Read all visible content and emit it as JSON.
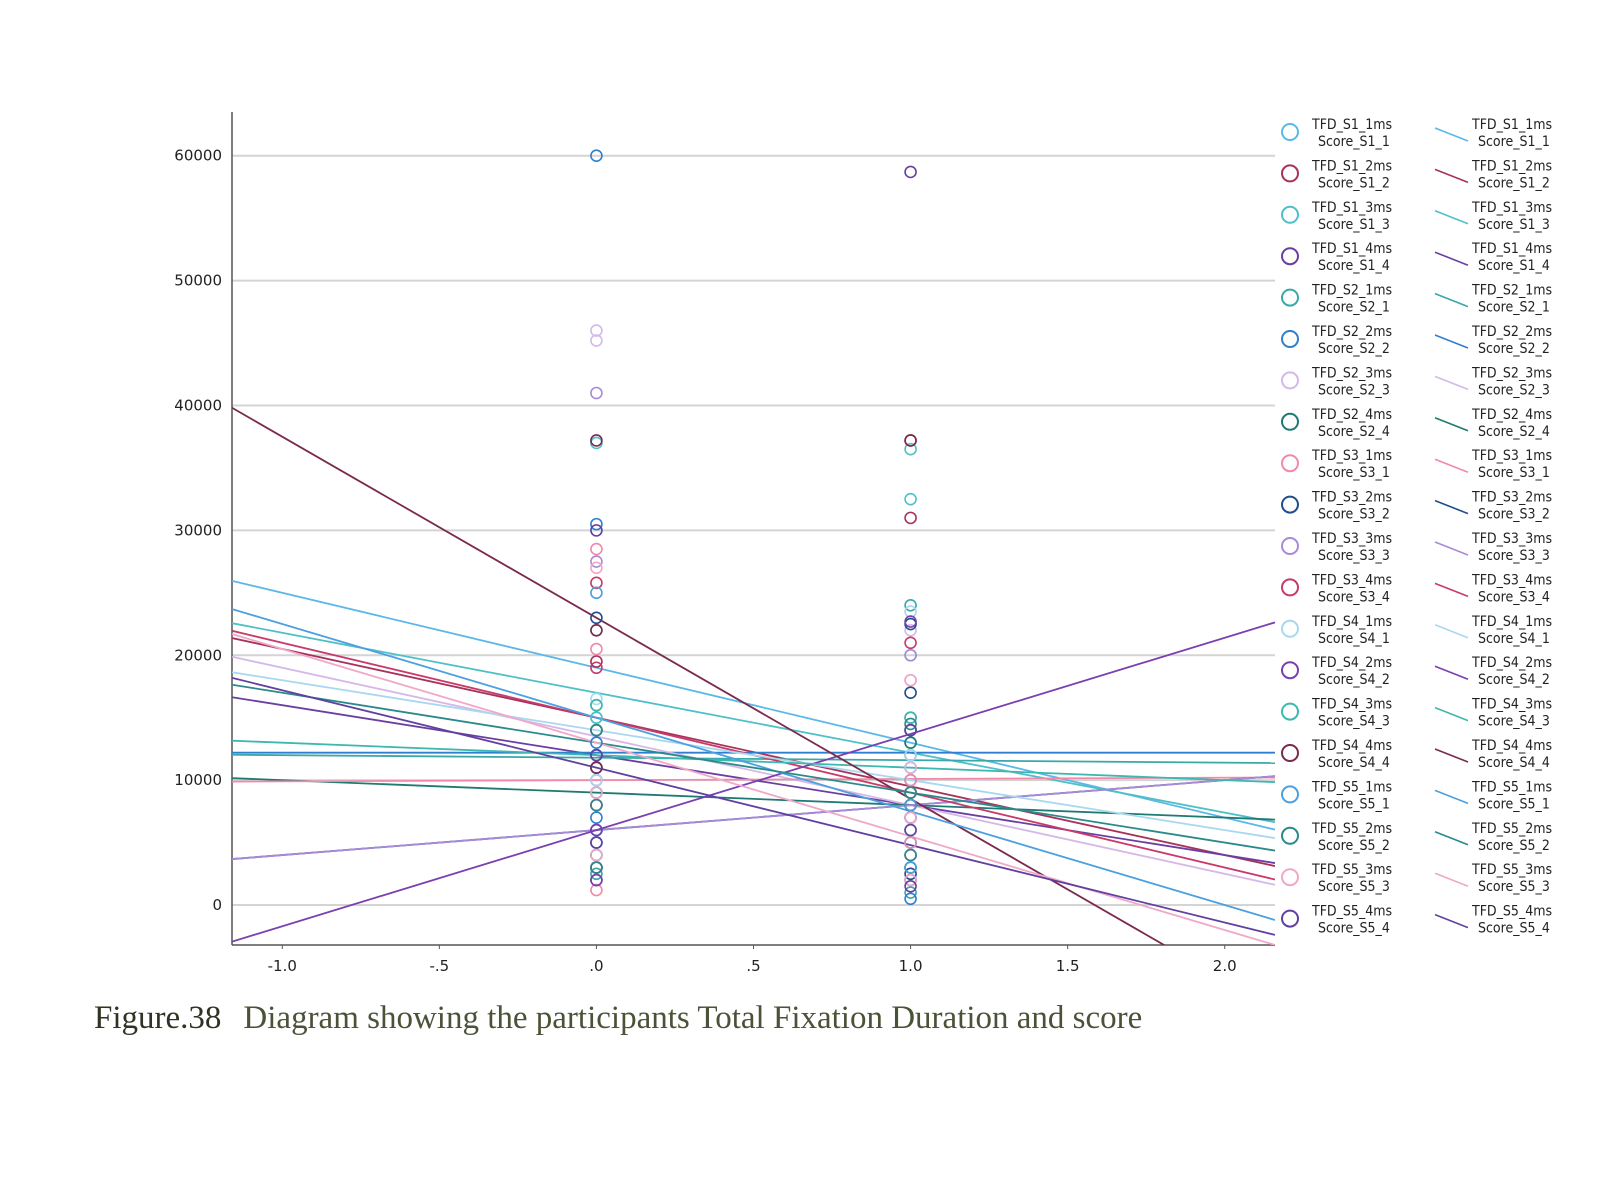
{
  "caption": {
    "figure_number": "Figure.38",
    "text": "Diagram showing the participants Total Fixation Duration and score"
  },
  "chart_data": {
    "type": "scatter",
    "title": "",
    "xlabel": "",
    "ylabel": "",
    "xlim": [
      -1.16,
      2.16
    ],
    "ylim": [
      -3200,
      63500
    ],
    "x_ticks": [
      -1.0,
      -0.5,
      0.0,
      0.5,
      1.0,
      1.5,
      2.0
    ],
    "x_tick_labels": [
      "-1.0",
      "-.5",
      ".0",
      ".5",
      "1.0",
      "1.5",
      "2.0"
    ],
    "y_ticks": [
      0,
      10000,
      20000,
      30000,
      40000,
      50000,
      60000
    ],
    "y_tick_labels": [
      "0",
      "10000",
      "20000",
      "30000",
      "40000",
      "50000",
      "60000"
    ],
    "grid": "horizontal",
    "legend_position": "right",
    "series": [
      {
        "tfd": "TFD_S1_1ms",
        "score": "Score_S1_1",
        "color": "#5bb8e8",
        "fit": [
          19000,
          -6000
        ],
        "x0": [
          22000,
          15000,
          11000,
          6000,
          3000
        ],
        "x1": [
          20000,
          12000,
          8000,
          5000,
          2000
        ]
      },
      {
        "tfd": "TFD_S1_2ms",
        "score": "Score_S1_2",
        "color": "#a8325a",
        "fit": [
          15000,
          -5500
        ],
        "x0": [
          19500,
          14000,
          10000,
          5000
        ],
        "x1": [
          31000,
          11000,
          7000,
          3000
        ]
      },
      {
        "tfd": "TFD_S1_3ms",
        "score": "Score_S1_3",
        "color": "#4fc0c8",
        "fit": [
          17000,
          -4800
        ],
        "x0": [
          37000,
          15000,
          9000,
          4000
        ],
        "x1": [
          36500,
          32500,
          13000,
          7000
        ]
      },
      {
        "tfd": "TFD_S1_4ms",
        "score": "Score_S1_4",
        "color": "#6a3fa0",
        "fit": [
          12000,
          -4000
        ],
        "x0": [
          12000,
          8000,
          3000
        ],
        "x1": [
          58700,
          9000,
          4000
        ]
      },
      {
        "tfd": "TFD_S2_1ms",
        "score": "Score_S2_1",
        "color": "#3aa8a8",
        "fit": [
          11800,
          -200
        ],
        "x0": [
          16000,
          11000,
          6000,
          2500
        ],
        "x1": [
          24000,
          12000,
          6000,
          1000
        ]
      },
      {
        "tfd": "TFD_S2_2ms",
        "score": "Score_S2_2",
        "color": "#2e7fd0",
        "fit": [
          12200,
          0
        ],
        "x0": [
          60000,
          30500,
          13000,
          7000
        ],
        "x1": [
          15000,
          10000,
          5000,
          500
        ]
      },
      {
        "tfd": "TFD_S2_3ms",
        "score": "Score_S2_3",
        "color": "#d6b8e8",
        "fit": [
          13500,
          -5500
        ],
        "x0": [
          46000,
          45200,
          14000,
          5000
        ],
        "x1": [
          22000,
          11000,
          6000
        ]
      },
      {
        "tfd": "TFD_S2_4ms",
        "score": "Score_S2_4",
        "color": "#1f7a72",
        "fit": [
          9000,
          -1000
        ],
        "x0": [
          14000,
          9000,
          4000
        ],
        "x1": [
          13000,
          8000,
          3000
        ]
      },
      {
        "tfd": "TFD_S3_1ms",
        "score": "Score_S3_1",
        "color": "#f08aa8",
        "fit": [
          10000,
          100
        ],
        "x0": [
          28500,
          20500,
          8000,
          1200
        ],
        "x1": [
          18000,
          10000,
          5000
        ]
      },
      {
        "tfd": "TFD_S3_2ms",
        "score": "Score_S3_2",
        "color": "#1f4e8c",
        "fit": [
          6000,
          2000
        ],
        "x0": [
          23000,
          12000,
          6000,
          2000
        ],
        "x1": [
          22500,
          17000,
          8000,
          2500
        ]
      },
      {
        "tfd": "TFD_S3_3ms",
        "score": "Score_S3_3",
        "color": "#a98ad8",
        "fit": [
          6000,
          2000
        ],
        "x0": [
          41000,
          27500,
          10000,
          3000
        ],
        "x1": [
          20000,
          9000,
          4000
        ]
      },
      {
        "tfd": "TFD_S3_4ms",
        "score": "Score_S3_4",
        "color": "#c83a6a",
        "fit": [
          15000,
          -6000
        ],
        "x0": [
          25800,
          19000,
          8000
        ],
        "x1": [
          37200,
          21000,
          9000
        ]
      },
      {
        "tfd": "TFD_S4_1ms",
        "score": "Score_S4_1",
        "color": "#a8d8f0",
        "fit": [
          14000,
          -4000
        ],
        "x0": [
          16500,
          10000,
          5000
        ],
        "x1": [
          23500,
          12000,
          6000
        ]
      },
      {
        "tfd": "TFD_S4_2ms",
        "score": "Score_S4_2",
        "color": "#7a3fb0",
        "fit": [
          6000,
          7700
        ],
        "x0": [
          11000,
          6000,
          2000
        ],
        "x1": [
          22700,
          14000,
          7000
        ]
      },
      {
        "tfd": "TFD_S4_3ms",
        "score": "Score_S4_3",
        "color": "#3cb8b0",
        "fit": [
          12000,
          -1000
        ],
        "x0": [
          16000,
          9000,
          3000
        ],
        "x1": [
          15000,
          9000,
          3000
        ]
      },
      {
        "tfd": "TFD_S4_4ms",
        "score": "Score_S4_4",
        "color": "#7a2a4e",
        "fit": [
          23000,
          -14500
        ],
        "x0": [
          37200,
          22000,
          11000,
          3000
        ],
        "x1": [
          37200,
          8000,
          2000
        ]
      },
      {
        "tfd": "TFD_S5_1ms",
        "score": "Score_S5_1",
        "color": "#4aa0e0",
        "fit": [
          15000,
          -7500
        ],
        "x0": [
          25000,
          12000,
          5000
        ],
        "x1": [
          14000,
          8000,
          3000
        ]
      },
      {
        "tfd": "TFD_S5_2ms",
        "score": "Score_S5_2",
        "color": "#2a8a8a",
        "fit": [
          13000,
          -4000
        ],
        "x0": [
          14000,
          8000,
          3000
        ],
        "x1": [
          14500,
          9000,
          4000
        ]
      },
      {
        "tfd": "TFD_S5_3ms",
        "score": "Score_S5_3",
        "color": "#f0a8c8",
        "fit": [
          13000,
          -7500
        ],
        "x0": [
          27000,
          9000,
          4000
        ],
        "x1": [
          18000,
          7000,
          2000
        ]
      },
      {
        "tfd": "TFD_S5_4ms",
        "score": "Score_S5_4",
        "color": "#6040a0",
        "fit": [
          11000,
          -6200
        ],
        "x0": [
          30000,
          12000,
          5000
        ],
        "x1": [
          14000,
          6000,
          1500
        ]
      }
    ]
  }
}
